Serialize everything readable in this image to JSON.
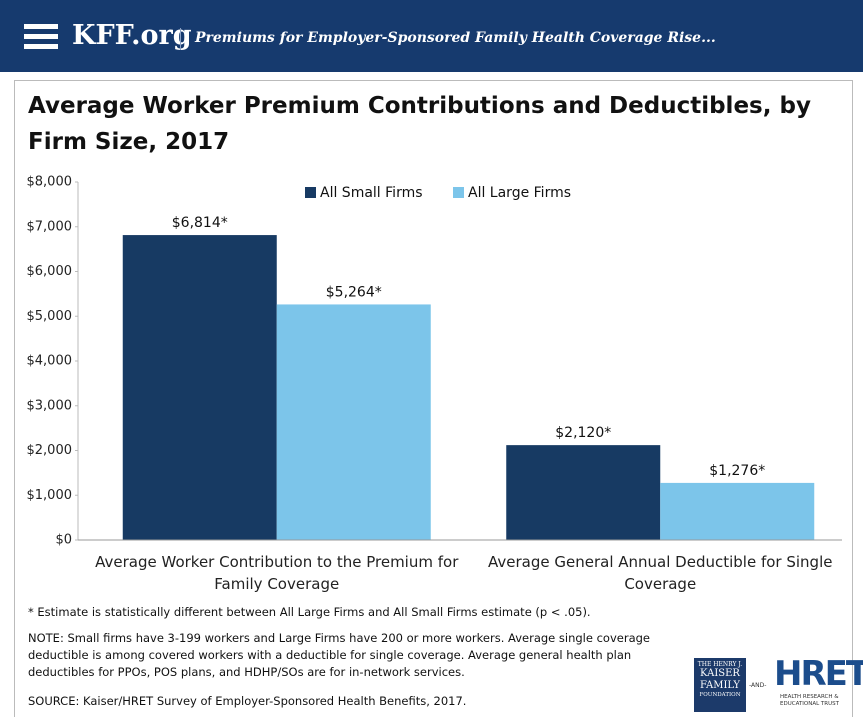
{
  "header": {
    "site": "KFF.org",
    "headline": "Premiums for Employer-Sponsored Family Health Coverage Rise..."
  },
  "chart_data": {
    "type": "bar",
    "title": "Average Worker Premium Contributions and Deductibles, by Firm Size, 2017",
    "categories": [
      "Average Worker Contribution to the Premium for Family Coverage",
      "Average General Annual Deductible for Single Coverage"
    ],
    "series": [
      {
        "name": "All Small Firms",
        "color": "#173a63",
        "values": [
          6814,
          2120
        ],
        "value_labels": [
          "$6,814*",
          "$2,120*"
        ]
      },
      {
        "name": "All Large Firms",
        "color": "#7cc5ea",
        "values": [
          5264,
          1276
        ],
        "value_labels": [
          "$5,264*",
          "$1,276*"
        ]
      }
    ],
    "ylim": [
      0,
      8000
    ],
    "yticks": [
      {
        "value": 0,
        "label": "$0"
      },
      {
        "value": 1000,
        "label": "$1,000"
      },
      {
        "value": 2000,
        "label": "$2,000"
      },
      {
        "value": 3000,
        "label": "$3,000"
      },
      {
        "value": 4000,
        "label": "$4,000"
      },
      {
        "value": 5000,
        "label": "$5,000"
      },
      {
        "value": 6000,
        "label": "$6,000"
      },
      {
        "value": 7000,
        "label": "$7,000"
      },
      {
        "value": 8000,
        "label": "$8,000"
      }
    ],
    "legend": "top",
    "grid": false
  },
  "footnotes": {
    "significance": "* Estimate is statistically different between All Large Firms and All Small Firms estimate (p < .05).",
    "note": "NOTE: Small firms have 3-199 workers and Large Firms have 200 or more workers. Average single coverage deductible is among covered workers with a deductible for single coverage. Average general health plan deductibles for PPOs, POS plans, and HDHP/SOs are for in-network services.",
    "source": "SOURCE:  Kaiser/HRET Survey of Employer-Sponsored Health Benefits, 2017."
  },
  "logos": {
    "kff": [
      "THE HENRY J.",
      "KAISER",
      "FAMILY",
      "FOUNDATION"
    ],
    "and": "-AND-",
    "hret": "HRET",
    "hret_sub": "HEALTH RESEARCH & EDUCATIONAL TRUST"
  }
}
